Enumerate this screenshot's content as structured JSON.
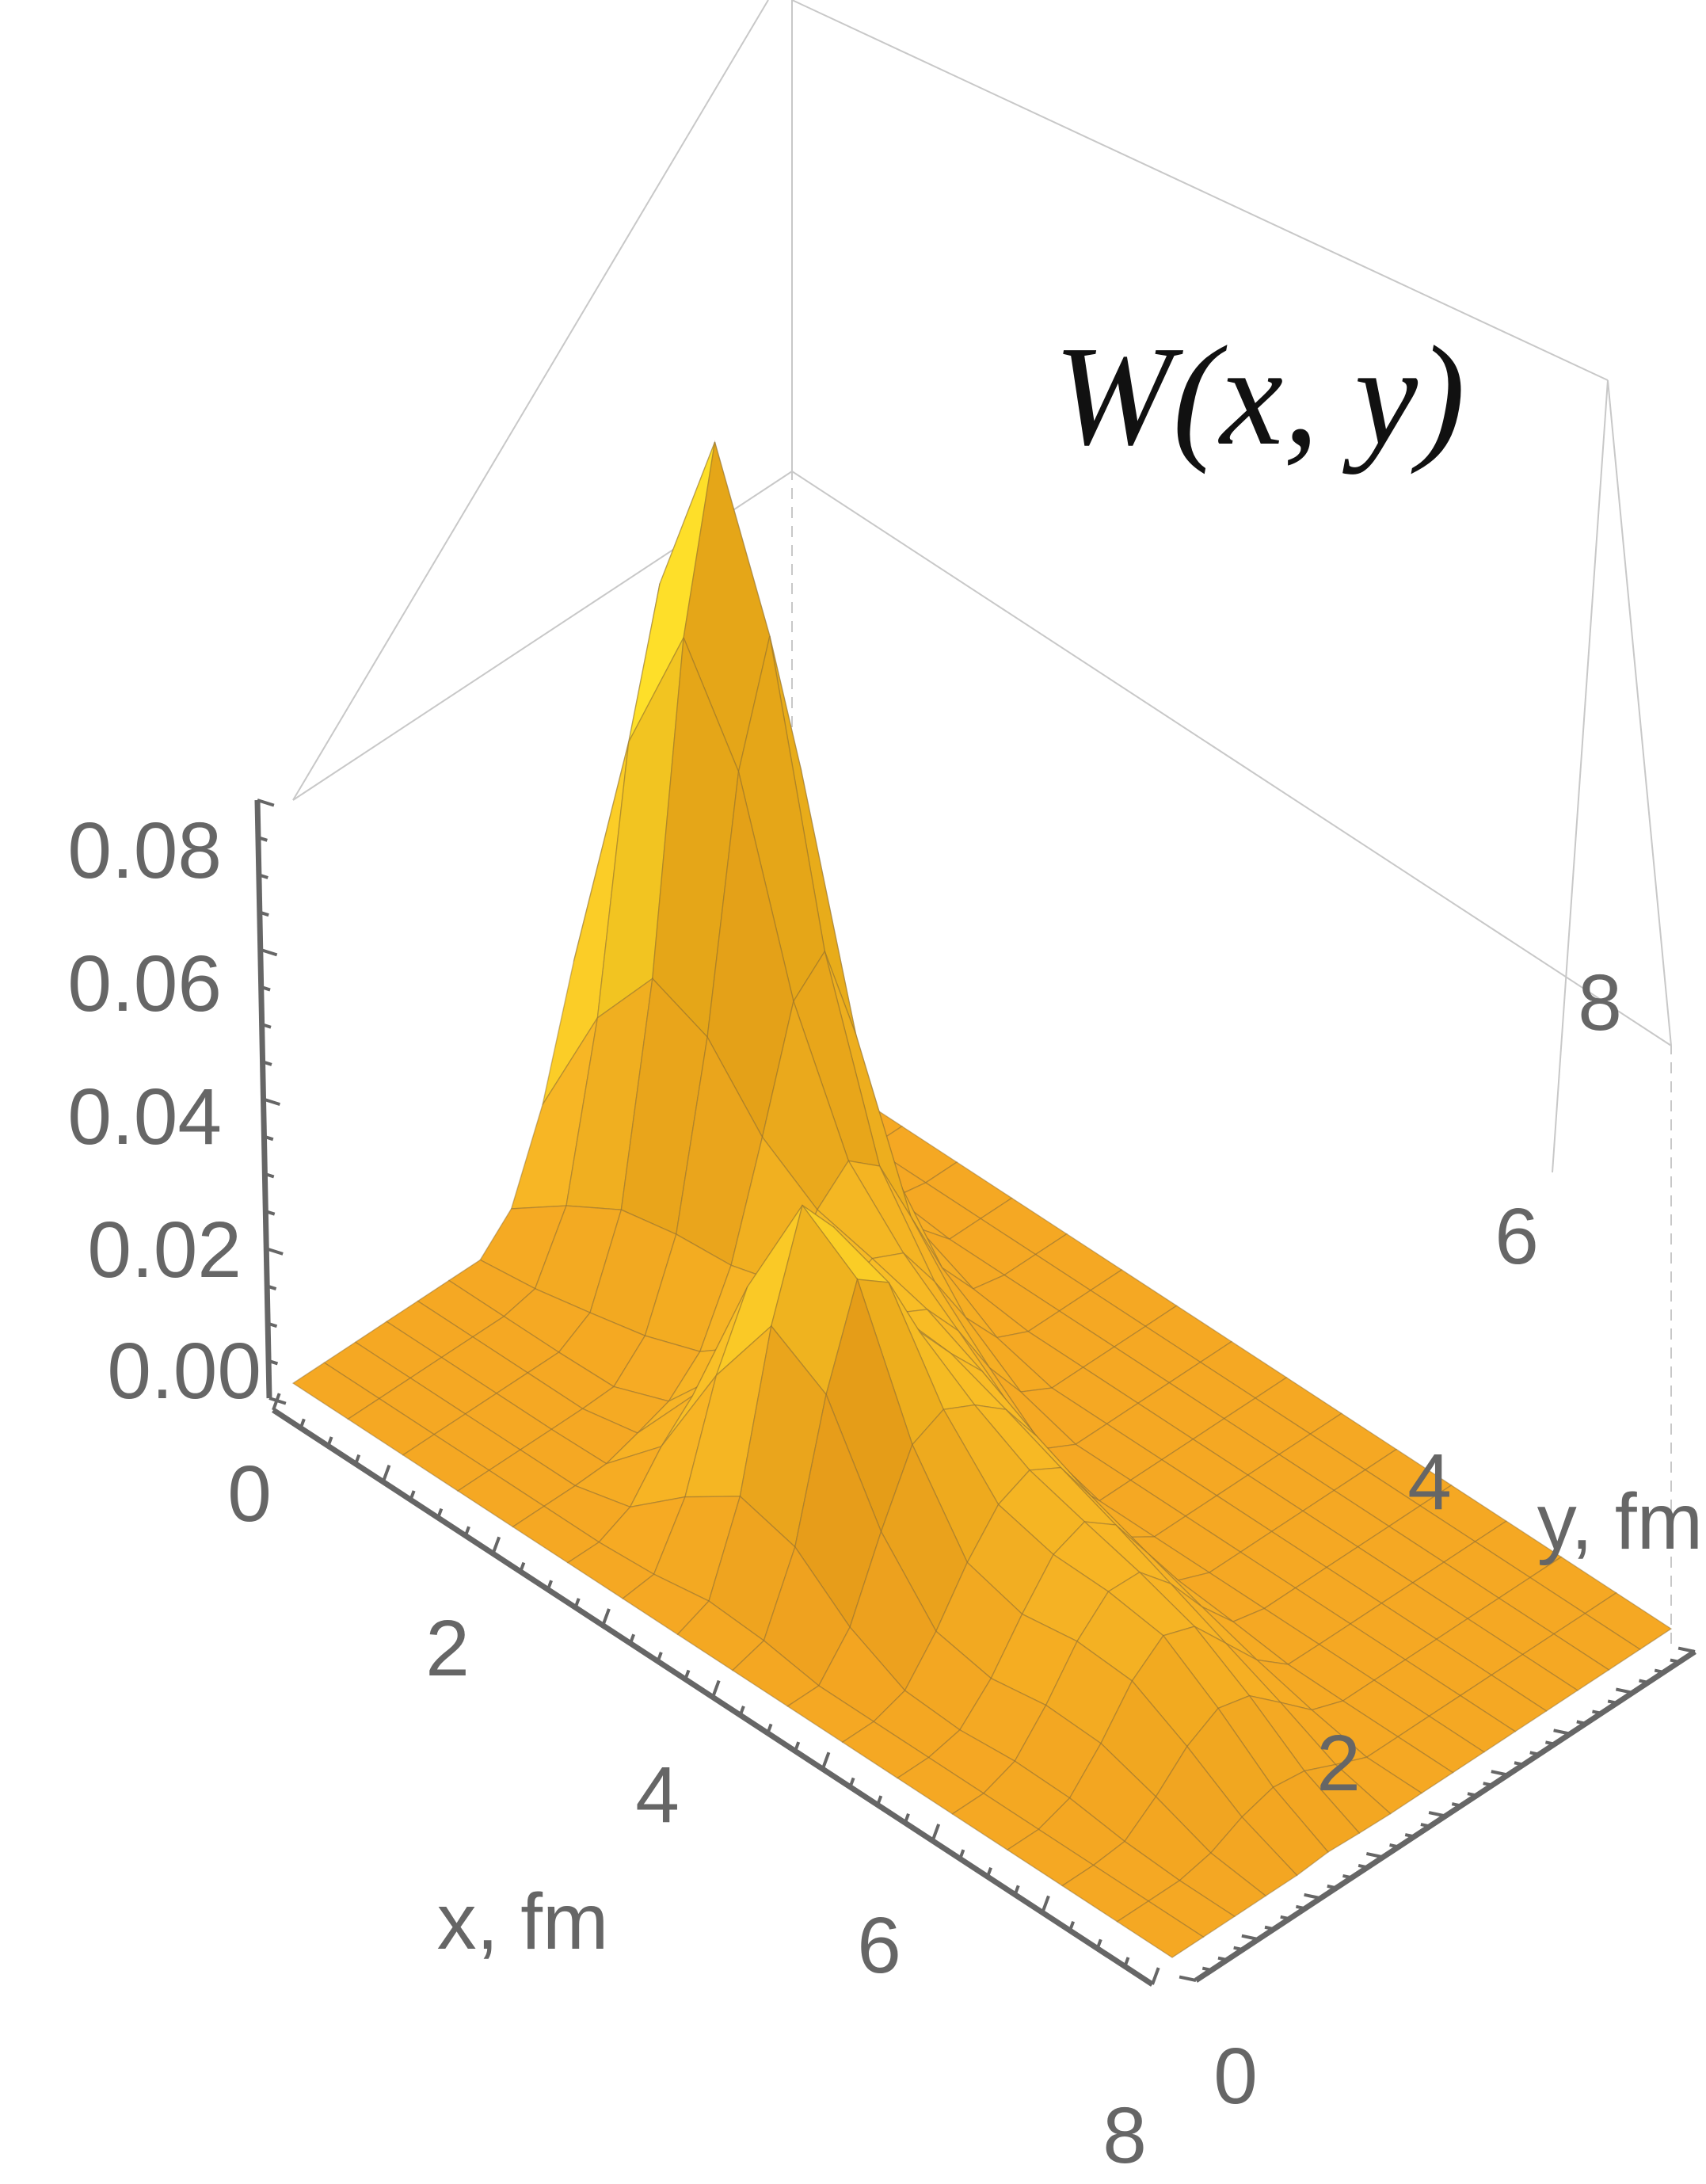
{
  "chart_data": {
    "type": "surface3d",
    "title": "W(x, y)",
    "xlabel": "x, fm",
    "ylabel": "y, fm",
    "zlabel": "",
    "xlim": [
      0,
      8
    ],
    "ylim": [
      0,
      8
    ],
    "zlim": [
      0,
      0.08
    ],
    "x_ticks": [
      "0",
      "2",
      "4",
      "6",
      "8"
    ],
    "y_ticks": [
      "0",
      "2",
      "4",
      "6",
      "8"
    ],
    "z_ticks": [
      "0.00",
      "0.02",
      "0.04",
      "0.06",
      "0.08"
    ],
    "surface_color": "#f5a623",
    "highlight_color": "#ffe82a",
    "shadow_color": "#d0780a",
    "mesh_color": "#8a6a30",
    "box_color": "#c8c8c8",
    "axis_color": "#666666",
    "grid_resolution": 16,
    "peaks": [
      {
        "x": 1.0,
        "y": 5.0,
        "height": 0.08
      },
      {
        "x": 3.6,
        "y": 2.0,
        "height": 0.045
      }
    ],
    "ridge": {
      "from": [
        1.0,
        5.0
      ],
      "to": [
        6.2,
        2.6
      ],
      "height": 0.03
    },
    "background_level": 0.0,
    "valley": {
      "x": 4.5,
      "y": 5.0,
      "depth": 0.006
    }
  }
}
